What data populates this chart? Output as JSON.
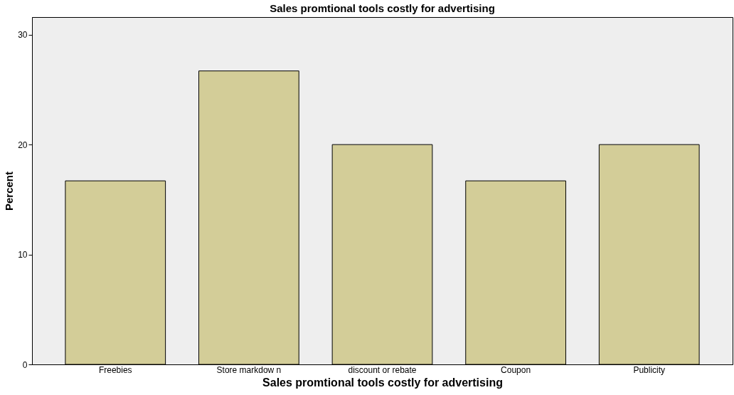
{
  "chart_data": {
    "type": "bar",
    "title": "Sales promtional tools costly for advertising",
    "xlabel": "Sales promtional tools costly for advertising",
    "ylabel": "Percent",
    "categories": [
      "Freebies",
      "Store markdow n",
      "discount or rebate",
      "Coupon",
      "Publicity"
    ],
    "values": [
      16.7,
      26.7,
      20.0,
      16.7,
      20.0
    ],
    "color": "#d3cd98",
    "ylim": [
      0,
      31.6
    ],
    "yticks": [
      0,
      10,
      20,
      30
    ],
    "grid": false
  }
}
